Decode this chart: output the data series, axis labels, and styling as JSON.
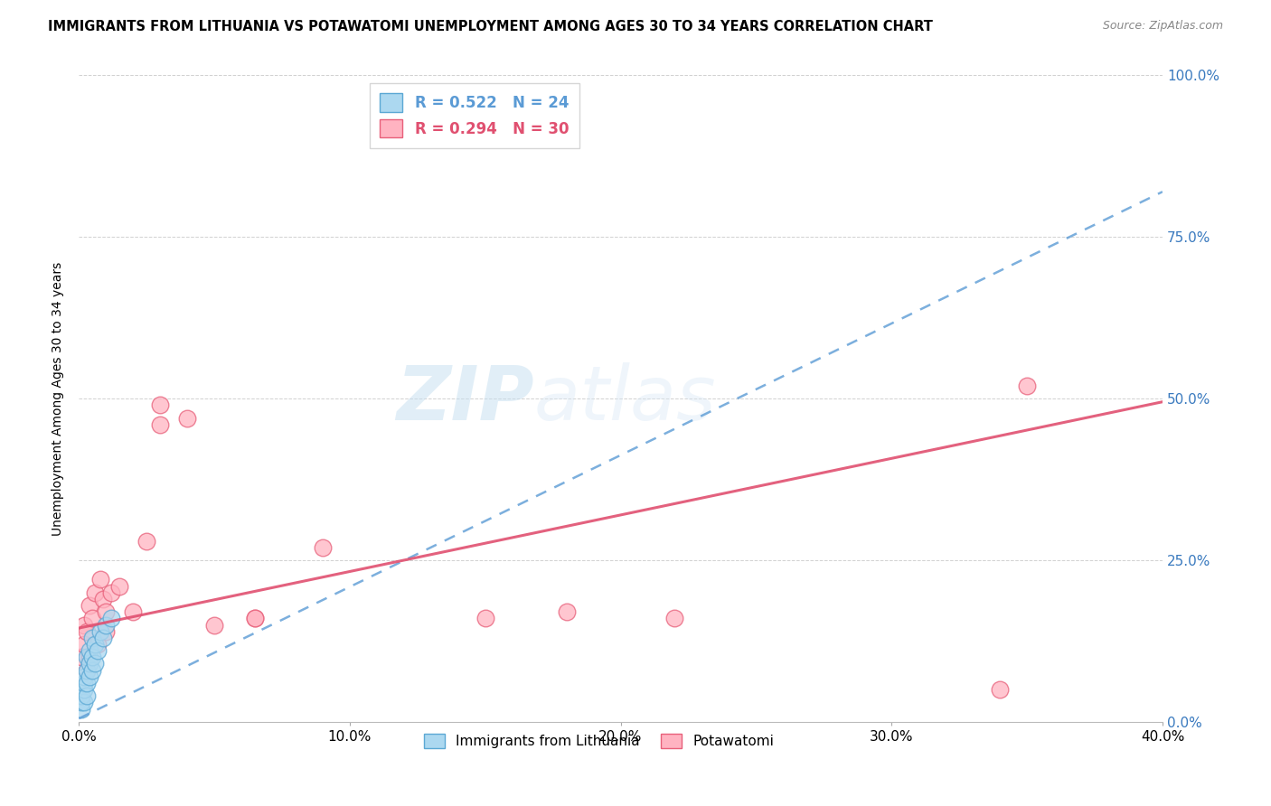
{
  "title": "IMMIGRANTS FROM LITHUANIA VS POTAWATOMI UNEMPLOYMENT AMONG AGES 30 TO 34 YEARS CORRELATION CHART",
  "source": "Source: ZipAtlas.com",
  "ylabel": "Unemployment Among Ages 30 to 34 years",
  "xlim": [
    0.0,
    0.4
  ],
  "ylim": [
    0.0,
    1.0
  ],
  "xtick_labels": [
    "0.0%",
    "10.0%",
    "20.0%",
    "30.0%",
    "40.0%"
  ],
  "xtick_vals": [
    0.0,
    0.1,
    0.2,
    0.3,
    0.4
  ],
  "ytick_labels_right": [
    "100.0%",
    "75.0%",
    "50.0%",
    "25.0%",
    "0.0%"
  ],
  "ytick_vals": [
    1.0,
    0.75,
    0.5,
    0.25,
    0.0
  ],
  "legend_r_blue": "R = 0.522",
  "legend_n_blue": "N = 24",
  "legend_r_pink": "R = 0.294",
  "legend_n_pink": "N = 30",
  "blue_fill_color": "#acd8f0",
  "blue_edge_color": "#5ba8d4",
  "pink_fill_color": "#ffb3c1",
  "pink_edge_color": "#e8607a",
  "blue_line_color": "#5b9bd5",
  "pink_line_color": "#e05070",
  "watermark_zip": "ZIP",
  "watermark_atlas": "atlas",
  "blue_scatter_x": [
    0.001,
    0.001,
    0.001,
    0.002,
    0.002,
    0.002,
    0.002,
    0.003,
    0.003,
    0.003,
    0.003,
    0.004,
    0.004,
    0.004,
    0.005,
    0.005,
    0.005,
    0.006,
    0.006,
    0.007,
    0.008,
    0.009,
    0.01,
    0.012
  ],
  "blue_scatter_y": [
    0.02,
    0.03,
    0.04,
    0.03,
    0.05,
    0.06,
    0.07,
    0.04,
    0.06,
    0.08,
    0.1,
    0.07,
    0.09,
    0.11,
    0.08,
    0.1,
    0.13,
    0.09,
    0.12,
    0.11,
    0.14,
    0.13,
    0.15,
    0.16
  ],
  "pink_scatter_x": [
    0.001,
    0.002,
    0.002,
    0.003,
    0.003,
    0.004,
    0.004,
    0.005,
    0.006,
    0.007,
    0.008,
    0.009,
    0.01,
    0.01,
    0.012,
    0.015,
    0.02,
    0.025,
    0.03,
    0.03,
    0.04,
    0.05,
    0.065,
    0.065,
    0.09,
    0.15,
    0.18,
    0.22,
    0.34,
    0.35
  ],
  "pink_scatter_y": [
    0.1,
    0.12,
    0.15,
    0.08,
    0.14,
    0.1,
    0.18,
    0.16,
    0.2,
    0.12,
    0.22,
    0.19,
    0.14,
    0.17,
    0.2,
    0.21,
    0.17,
    0.28,
    0.46,
    0.49,
    0.47,
    0.15,
    0.16,
    0.16,
    0.27,
    0.16,
    0.17,
    0.16,
    0.05,
    0.52
  ],
  "blue_trendline_x": [
    0.0,
    0.4
  ],
  "blue_trendline_y": [
    0.005,
    0.82
  ],
  "pink_trendline_x": [
    0.0,
    0.4
  ],
  "pink_trendline_y": [
    0.145,
    0.495
  ],
  "marker_size": 180
}
